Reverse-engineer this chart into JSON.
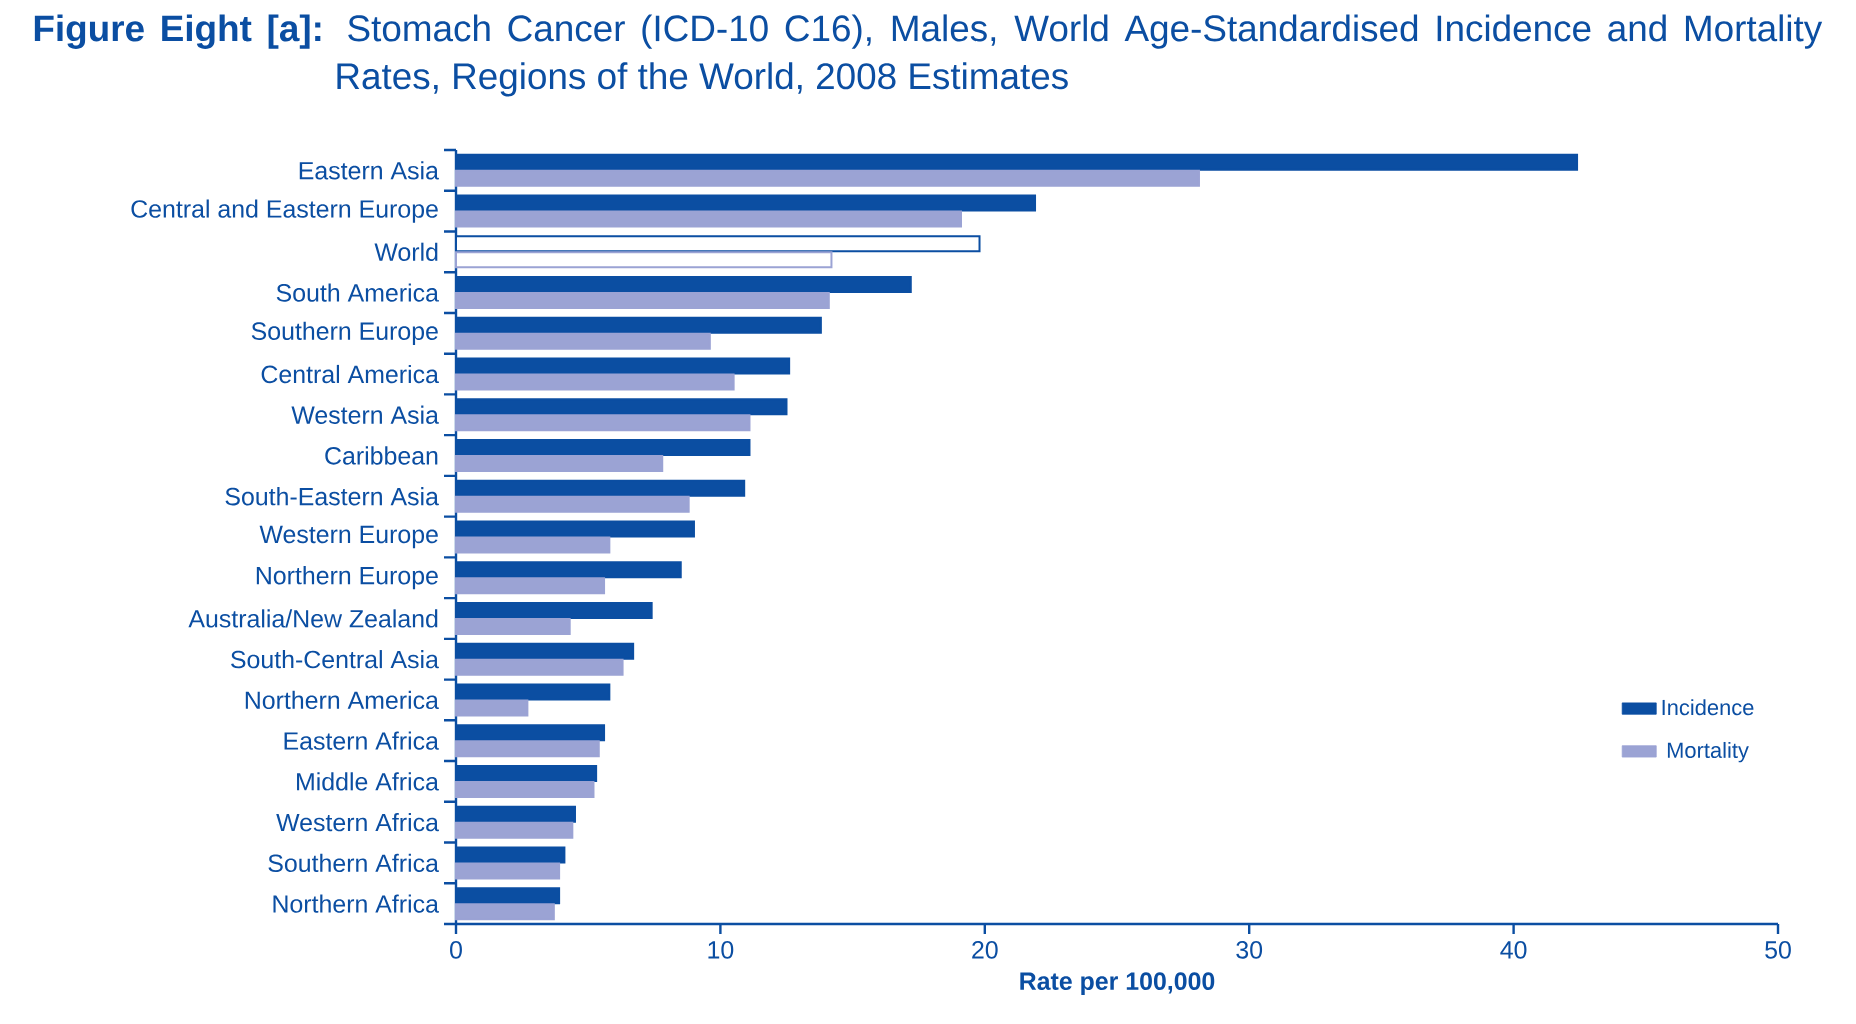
{
  "chart_data": {
    "type": "bar",
    "orientation": "horizontal",
    "title": "**Figure Eight [a]:** Stomach Cancer (ICD-10 C16), Males, World Age-Standardised Incidence and Mortality Rates, Regions of the World, 2008 Estimates",
    "xlabel": "Rate per 100,000",
    "categories": [
      "Eastern Asia",
      "Central and Eastern Europe",
      "World",
      "South America",
      "Southern Europe",
      "Central America",
      "Western Asia",
      "Caribbean",
      "South-Eastern Asia",
      "Western Europe",
      "Northern Europe",
      "Australia/New Zealand",
      "South-Central Asia",
      "Northern America",
      "Eastern Africa",
      "Middle Africa",
      "Western Africa",
      "Southern Africa",
      "Northern Africa"
    ],
    "series": [
      {
        "name": "Incidence",
        "color": "#0b4ea2",
        "colors": [
          "#0b4ea2",
          "#0b4ea2",
          "#ffffff",
          "#0b4ea2",
          "#0b4ea2",
          "#0b4ea2",
          "#0b4ea2",
          "#0b4ea2",
          "#0b4ea2",
          "#0b4ea2",
          "#0b4ea2",
          "#0b4ea2",
          "#0b4ea2",
          "#0b4ea2",
          "#0b4ea2",
          "#0b4ea2",
          "#0b4ea2",
          "#0b4ea2",
          "#0b4ea2"
        ],
        "values": [
          42.4,
          21.9,
          19.8,
          17.2,
          13.8,
          12.6,
          12.5,
          11.1,
          10.9,
          9.0,
          8.5,
          7.4,
          6.7,
          5.8,
          5.6,
          5.3,
          4.5,
          4.1,
          3.9
        ]
      },
      {
        "name": "Mortality",
        "color": "#9ba3d4",
        "colors": [
          "#9ba3d4",
          "#9ba3d4",
          "#ffffff",
          "#9ba3d4",
          "#9ba3d4",
          "#9ba3d4",
          "#9ba3d4",
          "#9ba3d4",
          "#9ba3d4",
          "#9ba3d4",
          "#9ba3d4",
          "#9ba3d4",
          "#9ba3d4",
          "#9ba3d4",
          "#9ba3d4",
          "#9ba3d4",
          "#9ba3d4",
          "#9ba3d4",
          "#9ba3d4"
        ],
        "values": [
          28.1,
          19.1,
          14.2,
          14.1,
          9.6,
          10.5,
          11.1,
          7.8,
          8.8,
          5.8,
          5.6,
          4.3,
          6.3,
          2.7,
          5.4,
          5.2,
          4.4,
          3.9,
          3.7
        ]
      }
    ],
    "xlim": [
      0,
      50
    ],
    "xticks": [
      0,
      10,
      20,
      30,
      40,
      50
    ],
    "grid": false,
    "legend": "bottom right"
  }
}
